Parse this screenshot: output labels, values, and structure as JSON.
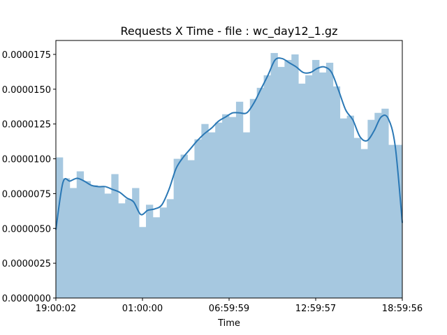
{
  "chart_data": {
    "type": "bar",
    "title": "Requests X Time - file : wc_day12_1.gz",
    "xlabel": "Time",
    "ylabel": "",
    "ylim": [
      0,
      1.85e-05
    ],
    "x_tick_labels": [
      "19:00:02",
      "01:00:00",
      "06:59:59",
      "12:59:57",
      "18:59:56"
    ],
    "y_ticks": [
      0,
      2.5e-06,
      5e-06,
      7.5e-06,
      1e-05,
      1.25e-05,
      1.5e-05,
      1.75e-05
    ],
    "y_tick_labels": [
      "0.0000000",
      "0.0000025",
      "0.0000050",
      "0.0000075",
      "0.0000100",
      "0.0000125",
      "0.0000150",
      "0.0000175"
    ],
    "grid": false,
    "bin_count": 50,
    "bar_color": "#a6c8e0",
    "kde_color": "#2a78b5",
    "histogram_values": [
      1.01e-05,
      8.6e-06,
      7.9e-06,
      9.1e-06,
      8.4e-06,
      8.1e-06,
      8e-06,
      7.5e-06,
      8.9e-06,
      6.8e-06,
      7.1e-06,
      7.9e-06,
      5.1e-06,
      6.7e-06,
      5.8e-06,
      6.5e-06,
      7.1e-06,
      1e-05,
      1.03e-05,
      9.9e-06,
      1.14e-05,
      1.25e-05,
      1.19e-05,
      1.26e-05,
      1.32e-05,
      1.3e-05,
      1.41e-05,
      1.19e-05,
      1.43e-05,
      1.51e-05,
      1.6e-05,
      1.76e-05,
      1.66e-05,
      1.71e-05,
      1.75e-05,
      1.54e-05,
      1.6e-05,
      1.71e-05,
      1.62e-05,
      1.69e-05,
      1.52e-05,
      1.29e-05,
      1.31e-05,
      1.15e-05,
      1.07e-05,
      1.28e-05,
      1.33e-05,
      1.36e-05,
      1.1e-05,
      1.1e-05
    ],
    "kde_values": [
      4.9e-06,
      8.3e-06,
      8.4e-06,
      8.6e-06,
      8.4e-06,
      8.1e-06,
      8e-06,
      8e-06,
      7.8e-06,
      7.6e-06,
      7.2e-06,
      6.9e-06,
      6e-06,
      6.3e-06,
      6.4e-06,
      6.7e-06,
      7.8e-06,
      9.3e-06,
      1.01e-05,
      1.07e-05,
      1.13e-05,
      1.18e-05,
      1.22e-05,
      1.27e-05,
      1.3e-05,
      1.33e-05,
      1.33e-05,
      1.33e-05,
      1.4e-05,
      1.5e-05,
      1.6e-05,
      1.71e-05,
      1.72e-05,
      1.69e-05,
      1.66e-05,
      1.62e-05,
      1.62e-05,
      1.65e-05,
      1.66e-05,
      1.62e-05,
      1.49e-05,
      1.35e-05,
      1.28e-05,
      1.16e-05,
      1.13e-05,
      1.2e-05,
      1.3e-05,
      1.29e-05,
      1.09e-05,
      5.4e-06
    ]
  }
}
